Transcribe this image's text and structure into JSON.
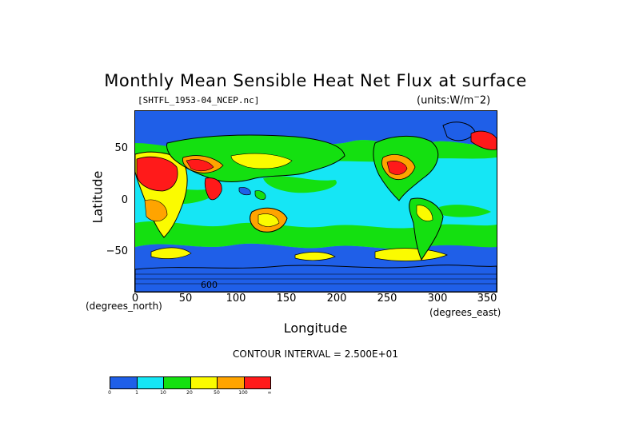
{
  "title": "Monthly Mean Sensible Heat Net Flux at surface",
  "file_label": "[SHTFL_1953-04_NCEP.nc]",
  "units_label": "(units:W/m^2)",
  "xlabel": "Longitude",
  "ylabel": "Latitude",
  "x_unit": "(degrees_east)",
  "y_unit": "(degrees_north)",
  "contour_interval": "CONTOUR INTERVAL = 2.500E+01",
  "x_ticks": [
    "0",
    "50",
    "100",
    "150",
    "200",
    "250",
    "300",
    "350"
  ],
  "y_ticks": [
    "50",
    "0",
    "−50"
  ],
  "colors": {
    "blue": "#1f5fe8",
    "cyan": "#15e6f5",
    "green": "#14e010",
    "yellow": "#fbfb00",
    "orange": "#ffa400",
    "red": "#ff1a1a"
  },
  "legend": {
    "swatches": [
      "#1f5fe8",
      "#15e6f5",
      "#14e010",
      "#fbfb00",
      "#ffa400",
      "#ff1a1a"
    ],
    "tick_labels": [
      "0",
      "1",
      "10",
      "20",
      "50",
      "100",
      "∞"
    ]
  },
  "map": {
    "contour_annotation": "600"
  }
}
